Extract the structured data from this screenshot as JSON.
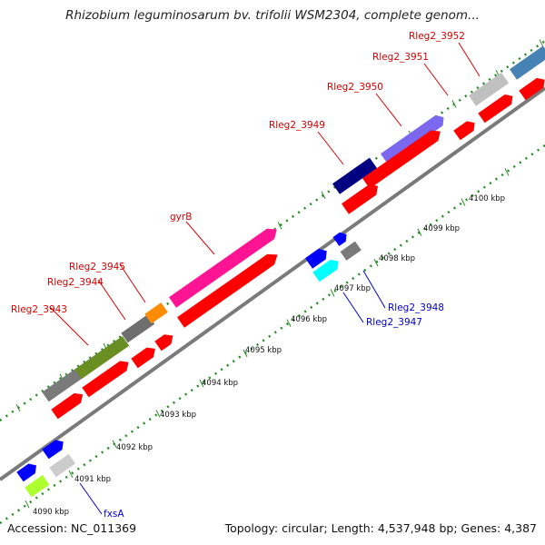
{
  "title": "Rhizobium leguminosarum bv. trifolii WSM2304, complete genom...",
  "footer": {
    "accession": "Accession: NC_011369",
    "topology": "Topology: circular; Length: 4,537,948 bp; Genes: 4,387"
  },
  "scale_labels": [
    "4090 kbp",
    "4091 kbp",
    "4092 kbp",
    "4093 kbp",
    "4094 kbp",
    "4095 kbp",
    "4096 kbp",
    "4097 kbp",
    "4098 kbp",
    "4099 kbp",
    "4100 kbp"
  ],
  "gene_labels_upper": [
    "Rleg2_3943",
    "Rleg2_3944",
    "Rleg2_3945",
    "gyrB",
    "Rleg2_3949",
    "Rleg2_3950",
    "Rleg2_3951",
    "Rleg2_3952"
  ],
  "gene_labels_lower": [
    "Rleg2_3947",
    "Rleg2_3948",
    "fxsA"
  ],
  "colors": {
    "cds": "#ff0000",
    "gyrB": "#ff1493",
    "Rleg2_3943": "#6b8e23",
    "Rleg2_3944": "#6e6e6e",
    "Rleg2_3945": "#ff8c00",
    "Rleg2_3949": "#000080",
    "Rleg2_3950": "#7b68ee",
    "Rleg2_3951": "#c0c0c0",
    "Rleg2_3952": "#4682b4",
    "Rleg2_3947": "#00ffff",
    "Rleg2_3948": "#0000ff",
    "fxsA": "#adff2f",
    "backbone": "#808080",
    "tick": "#228b22",
    "label_red": "#d40000",
    "label_blue": "#0000cc"
  }
}
